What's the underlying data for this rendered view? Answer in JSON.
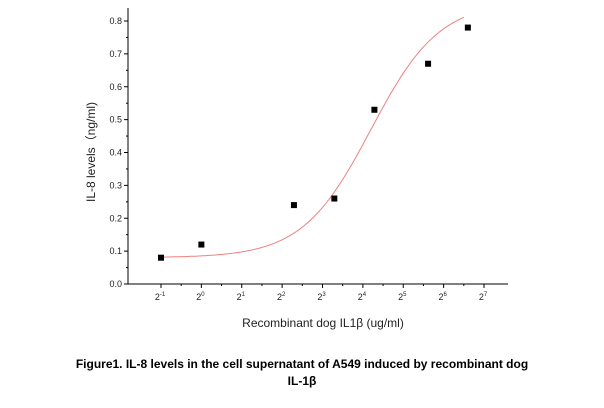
{
  "chart_data": {
    "type": "scatter",
    "title": "",
    "xlabel": "Recombinant dog IL1β (ug/ml)",
    "ylabel": "IL-8 levels（ng/ml)",
    "x_scale": "log2",
    "xlim": [
      -1,
      7
    ],
    "ylim": [
      0,
      0.8
    ],
    "x_ticks": [
      {
        "base": "2",
        "exp": "-1"
      },
      {
        "base": "2",
        "exp": "0"
      },
      {
        "base": "2",
        "exp": "1"
      },
      {
        "base": "2",
        "exp": "2"
      },
      {
        "base": "2",
        "exp": "3"
      },
      {
        "base": "2",
        "exp": "4"
      },
      {
        "base": "2",
        "exp": "5"
      },
      {
        "base": "2",
        "exp": "6"
      },
      {
        "base": "2",
        "exp": "7"
      }
    ],
    "y_ticks": [
      "0.0",
      "0.1",
      "0.2",
      "0.3",
      "0.4",
      "0.5",
      "0.6",
      "0.7",
      "0.8"
    ],
    "points": [
      {
        "x": 0.5,
        "y": 0.08
      },
      {
        "x": 1,
        "y": 0.12
      },
      {
        "x": 4.9,
        "y": 0.24
      },
      {
        "x": 9.8,
        "y": 0.26
      },
      {
        "x": 19.5,
        "y": 0.53
      },
      {
        "x": 49,
        "y": 0.67
      },
      {
        "x": 97,
        "y": 0.78
      }
    ],
    "fit_curve": {
      "type": "sigmoidal",
      "color": "#f08080"
    },
    "marker_color": "#000000",
    "legend": "none",
    "grid": false
  },
  "caption": {
    "line1": "Figure1. IL-8 levels in the cell supernatant of A549 induced by recombinant dog",
    "line2": "IL-1β"
  }
}
